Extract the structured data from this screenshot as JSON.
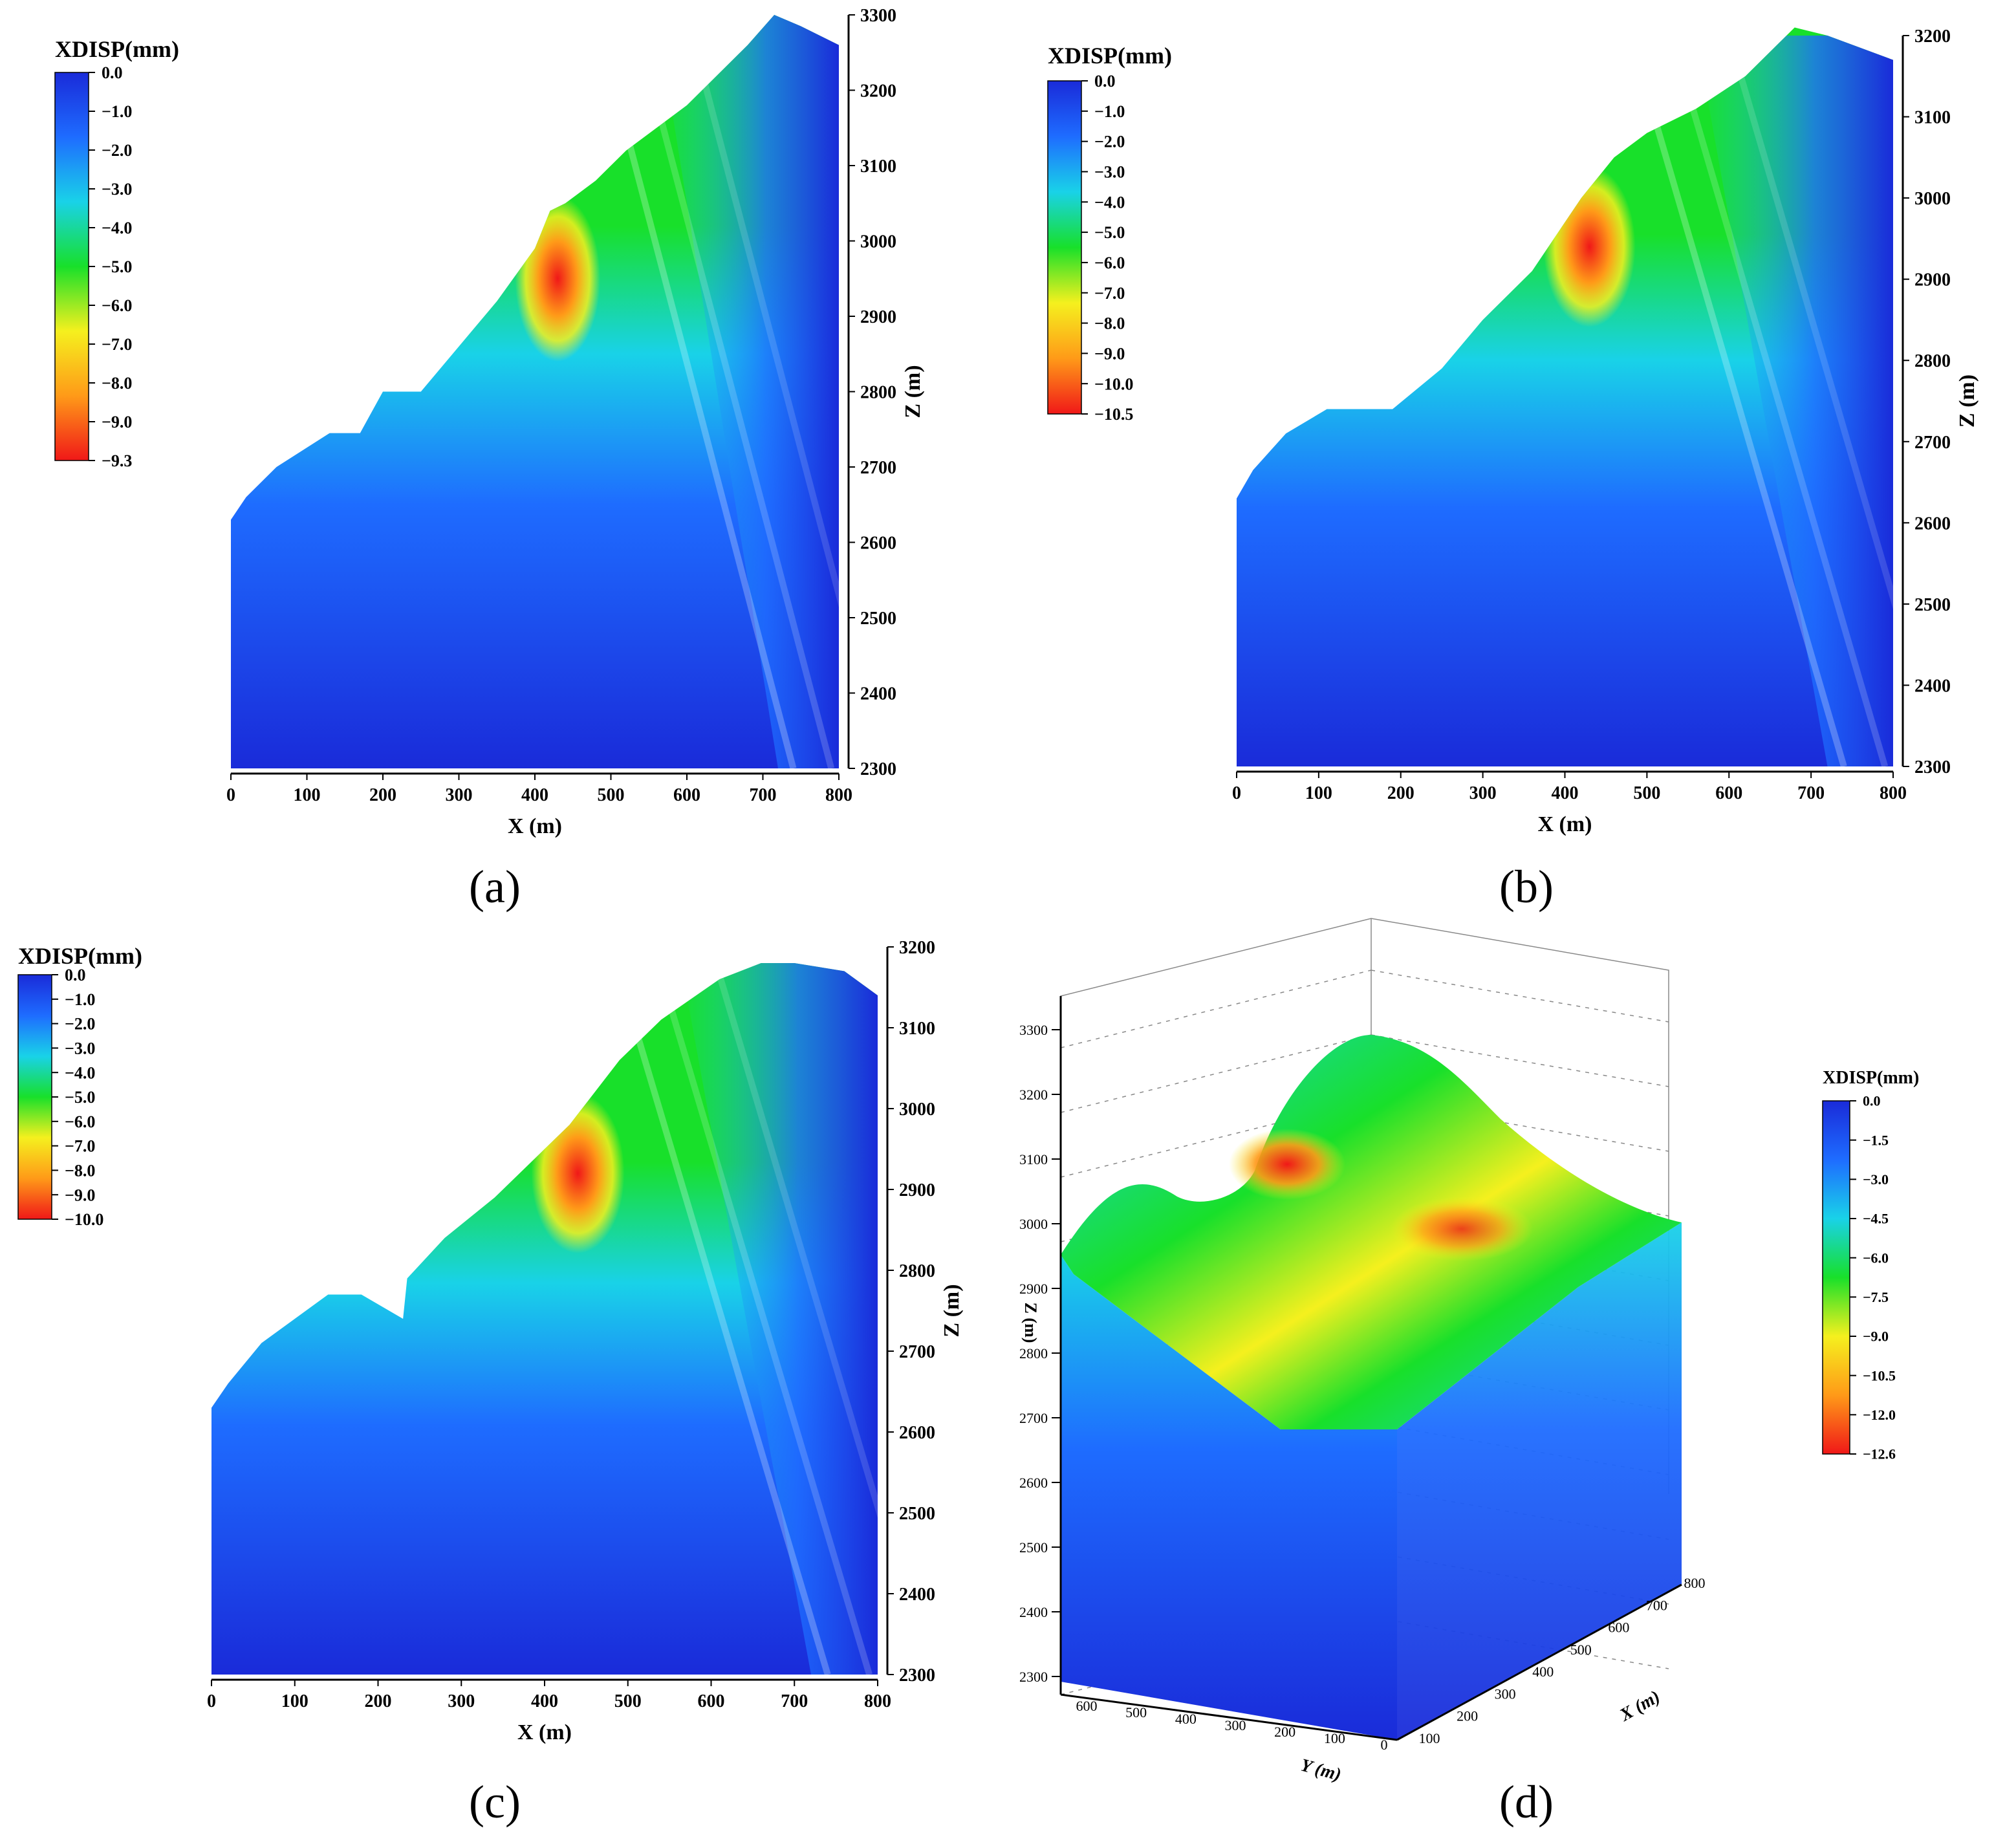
{
  "colors": {
    "deep_blue": "#1a2bd9",
    "blue": "#1e6cff",
    "cyan": "#19d2e8",
    "green": "#18e02a",
    "yellow": "#f5f01e",
    "orange": "#ff9a18",
    "red": "#f01818"
  },
  "chart_data": [
    {
      "id": "a",
      "type": "heatmap",
      "panel_label": "(a)",
      "colorbar_title": "XDISP(mm)",
      "colorbar_ticks": [
        "0.0",
        "−1.0",
        "−2.0",
        "−3.0",
        "−4.0",
        "−5.0",
        "−6.0",
        "−7.0",
        "−8.0",
        "−9.0",
        "−9.3"
      ],
      "colorbar_range": [
        0.0,
        -9.3
      ],
      "xlabel": "X (m)",
      "ylabel": "Z (m)",
      "x_ticks": [
        "0",
        "100",
        "200",
        "300",
        "400",
        "500",
        "600",
        "700",
        "800"
      ],
      "y_ticks": [
        "2300",
        "2400",
        "2500",
        "2600",
        "2700",
        "2800",
        "2900",
        "3000",
        "3100",
        "3200",
        "3300"
      ],
      "xlim": [
        0,
        800
      ],
      "ylim": [
        2300,
        3300
      ],
      "max_displacement_location": {
        "x": 420,
        "z": 3010,
        "value": -9.3
      },
      "profile_x": [
        0,
        20,
        60,
        130,
        170,
        200,
        250,
        300,
        350,
        400,
        420,
        440,
        480,
        520,
        600,
        680,
        715,
        750,
        800
      ],
      "profile_z": [
        2630,
        2660,
        2700,
        2745,
        2745,
        2800,
        2800,
        2860,
        2920,
        2990,
        3040,
        3050,
        3080,
        3120,
        3180,
        3260,
        3300,
        3285,
        3260
      ]
    },
    {
      "id": "b",
      "type": "heatmap",
      "panel_label": "(b)",
      "colorbar_title": "XDISP(mm)",
      "colorbar_ticks": [
        "0.0",
        "−1.0",
        "−2.0",
        "−3.0",
        "−4.0",
        "−5.0",
        "−6.0",
        "−7.0",
        "−8.0",
        "−9.0",
        "−10.0",
        "−10.5"
      ],
      "colorbar_range": [
        0.0,
        -10.5
      ],
      "xlabel": "X (m)",
      "ylabel": "Z (m)",
      "x_ticks": [
        "0",
        "100",
        "200",
        "300",
        "400",
        "500",
        "600",
        "700",
        "800"
      ],
      "y_ticks": [
        "2300",
        "2400",
        "2500",
        "2600",
        "2700",
        "2800",
        "2900",
        "3000",
        "3100",
        "3200"
      ],
      "xlim": [
        0,
        800
      ],
      "ylim": [
        2300,
        3200
      ],
      "max_displacement_location": {
        "x": 420,
        "z": 3000,
        "value": -10.5
      },
      "profile_x": [
        0,
        20,
        60,
        110,
        190,
        250,
        300,
        360,
        420,
        460,
        500,
        560,
        620,
        680,
        720,
        800
      ],
      "profile_z": [
        2630,
        2665,
        2710,
        2740,
        2740,
        2790,
        2850,
        2910,
        3000,
        3050,
        3080,
        3110,
        3150,
        3210,
        3200,
        3170
      ]
    },
    {
      "id": "c",
      "type": "heatmap",
      "panel_label": "(c)",
      "colorbar_title": "XDISP(mm)",
      "colorbar_ticks": [
        "0.0",
        "−1.0",
        "−2.0",
        "−3.0",
        "−4.0",
        "−5.0",
        "−6.0",
        "−7.0",
        "−8.0",
        "−9.0",
        "−10.0"
      ],
      "colorbar_range": [
        0.0,
        -10.0
      ],
      "xlabel": "X (m)",
      "ylabel": "Z (m)",
      "x_ticks": [
        "0",
        "100",
        "200",
        "300",
        "400",
        "500",
        "600",
        "700",
        "800"
      ],
      "y_ticks": [
        "2300",
        "2400",
        "2500",
        "2600",
        "2700",
        "2800",
        "2900",
        "3000",
        "3100",
        "3200"
      ],
      "xlim": [
        0,
        800
      ],
      "ylim": [
        2300,
        3200
      ],
      "max_displacement_location": {
        "x": 430,
        "z": 2980,
        "value": -10.0
      },
      "profile_x": [
        0,
        20,
        60,
        140,
        180,
        230,
        235,
        280,
        340,
        400,
        430,
        490,
        540,
        610,
        660,
        700,
        760,
        800
      ],
      "profile_z": [
        2630,
        2660,
        2710,
        2770,
        2770,
        2740,
        2790,
        2840,
        2890,
        2950,
        2980,
        3060,
        3110,
        3160,
        3180,
        3180,
        3170,
        3140
      ]
    },
    {
      "id": "d",
      "type": "heatmap",
      "panel_label": "(d)",
      "colorbar_title": "XDISP(mm)",
      "colorbar_ticks": [
        "0.0",
        "−1.5",
        "−3.0",
        "−4.5",
        "−6.0",
        "−7.5",
        "−9.0",
        "−10.5",
        "−12.0",
        "−12.6"
      ],
      "colorbar_range": [
        0.0,
        -12.6
      ],
      "xlabel": "X (m)",
      "ylabel": "Z (m)",
      "zlabel_3d": "Y (m)",
      "x_ticks": [
        "100",
        "200",
        "300",
        "400",
        "500",
        "600",
        "700",
        "800"
      ],
      "y_ticks_3d": [
        "0",
        "100",
        "200",
        "300",
        "400",
        "500",
        "600"
      ],
      "z_ticks": [
        "2300",
        "2400",
        "2500",
        "2600",
        "2700",
        "2800",
        "2900",
        "3000",
        "3100",
        "3200",
        "3300"
      ],
      "view": "3d"
    }
  ]
}
